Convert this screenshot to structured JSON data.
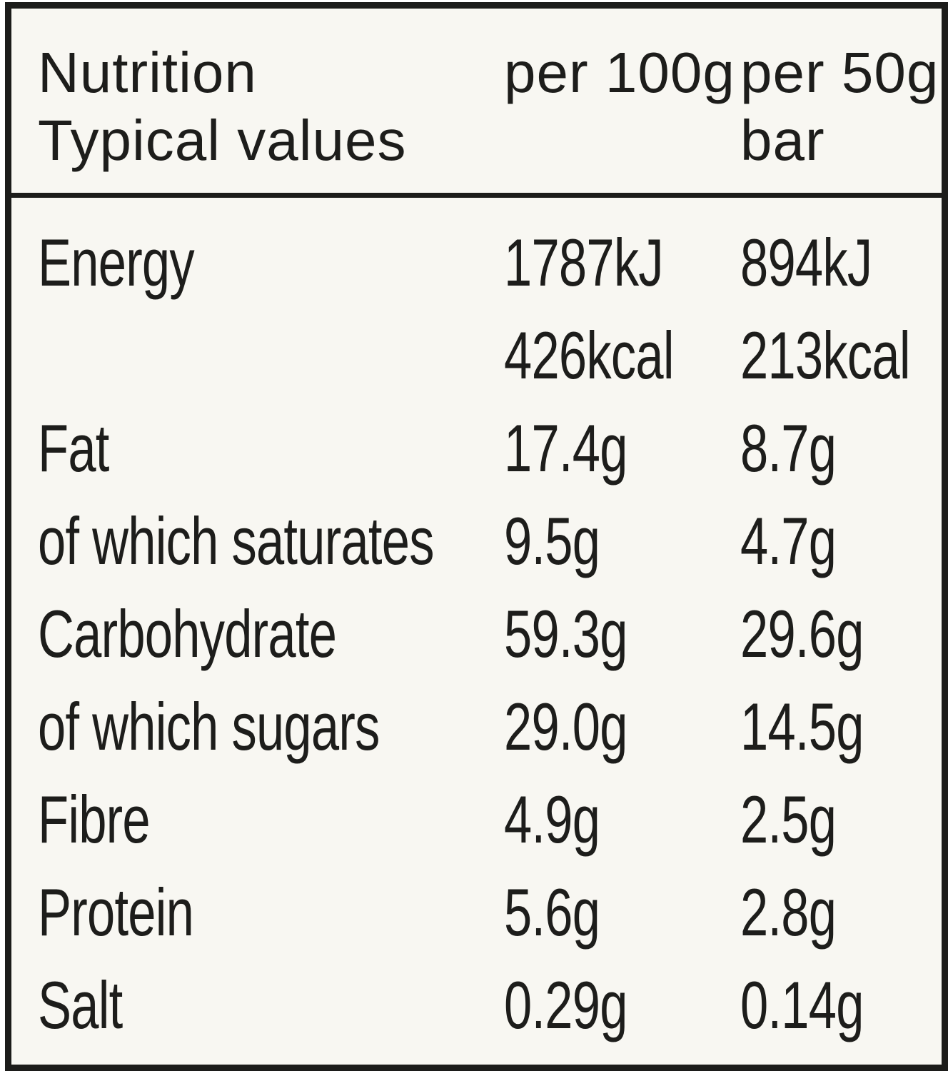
{
  "colors": {
    "background": "#f8f7f2",
    "border": "#1c1c1a",
    "text": "#1d1d1b"
  },
  "header": {
    "title": "Nutrition",
    "subtitle": "Typical values",
    "per100_label": "per 100g",
    "per50_label": "per 50g",
    "per50_unit": "bar"
  },
  "rows": [
    {
      "label": "Energy",
      "per100": "1787kJ",
      "per50": "894kJ"
    },
    {
      "label": "",
      "per100": "426kcal",
      "per50": "213kcal"
    },
    {
      "label": "Fat",
      "per100": "17.4g",
      "per50": "8.7g"
    },
    {
      "label": "of which saturates",
      "per100": "9.5g",
      "per50": "4.7g"
    },
    {
      "label": "Carbohydrate",
      "per100": "59.3g",
      "per50": "29.6g"
    },
    {
      "label": "of which sugars",
      "per100": "29.0g",
      "per50": "14.5g"
    },
    {
      "label": "Fibre",
      "per100": "4.9g",
      "per50": "2.5g"
    },
    {
      "label": "Protein",
      "per100": "5.6g",
      "per50": "2.8g"
    },
    {
      "label": "Salt",
      "per100": "0.29g",
      "per50": "0.14g"
    }
  ]
}
